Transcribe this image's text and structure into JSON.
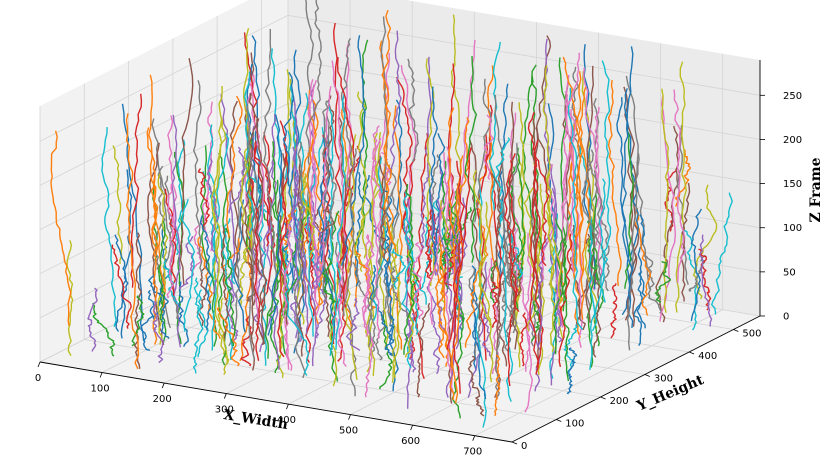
{
  "chart_data": {
    "type": "line3d",
    "title": "",
    "xlabel": "X_Width",
    "ylabel": "Y_Height",
    "zlabel": "Z Frame",
    "xlim": [
      0,
      760
    ],
    "ylim": [
      0,
      560
    ],
    "zlim": [
      0,
      290
    ],
    "xticks": [
      "0",
      "100",
      "200",
      "300",
      "400",
      "500",
      "600",
      "700"
    ],
    "yticks": [
      "0",
      "100",
      "200",
      "300",
      "400",
      "500"
    ],
    "zticks": [
      "0",
      "50",
      "100",
      "150",
      "200",
      "250"
    ],
    "xtick_values": [
      0,
      100,
      200,
      300,
      400,
      500,
      600,
      700
    ],
    "ytick_values": [
      0,
      100,
      200,
      300,
      400,
      500
    ],
    "ztick_values": [
      0,
      50,
      100,
      150,
      200,
      250
    ],
    "grid": true,
    "legend": "none",
    "series_note": "several hundred unnamed particle trajectories (tab10 color cycle), each running roughly vertically in Z",
    "palette": [
      "#1f77b4",
      "#ff7f0e",
      "#2ca02c",
      "#d62728",
      "#9467bd",
      "#8c564b",
      "#e377c2",
      "#7f7f7f",
      "#bcbd22",
      "#17becf"
    ]
  }
}
